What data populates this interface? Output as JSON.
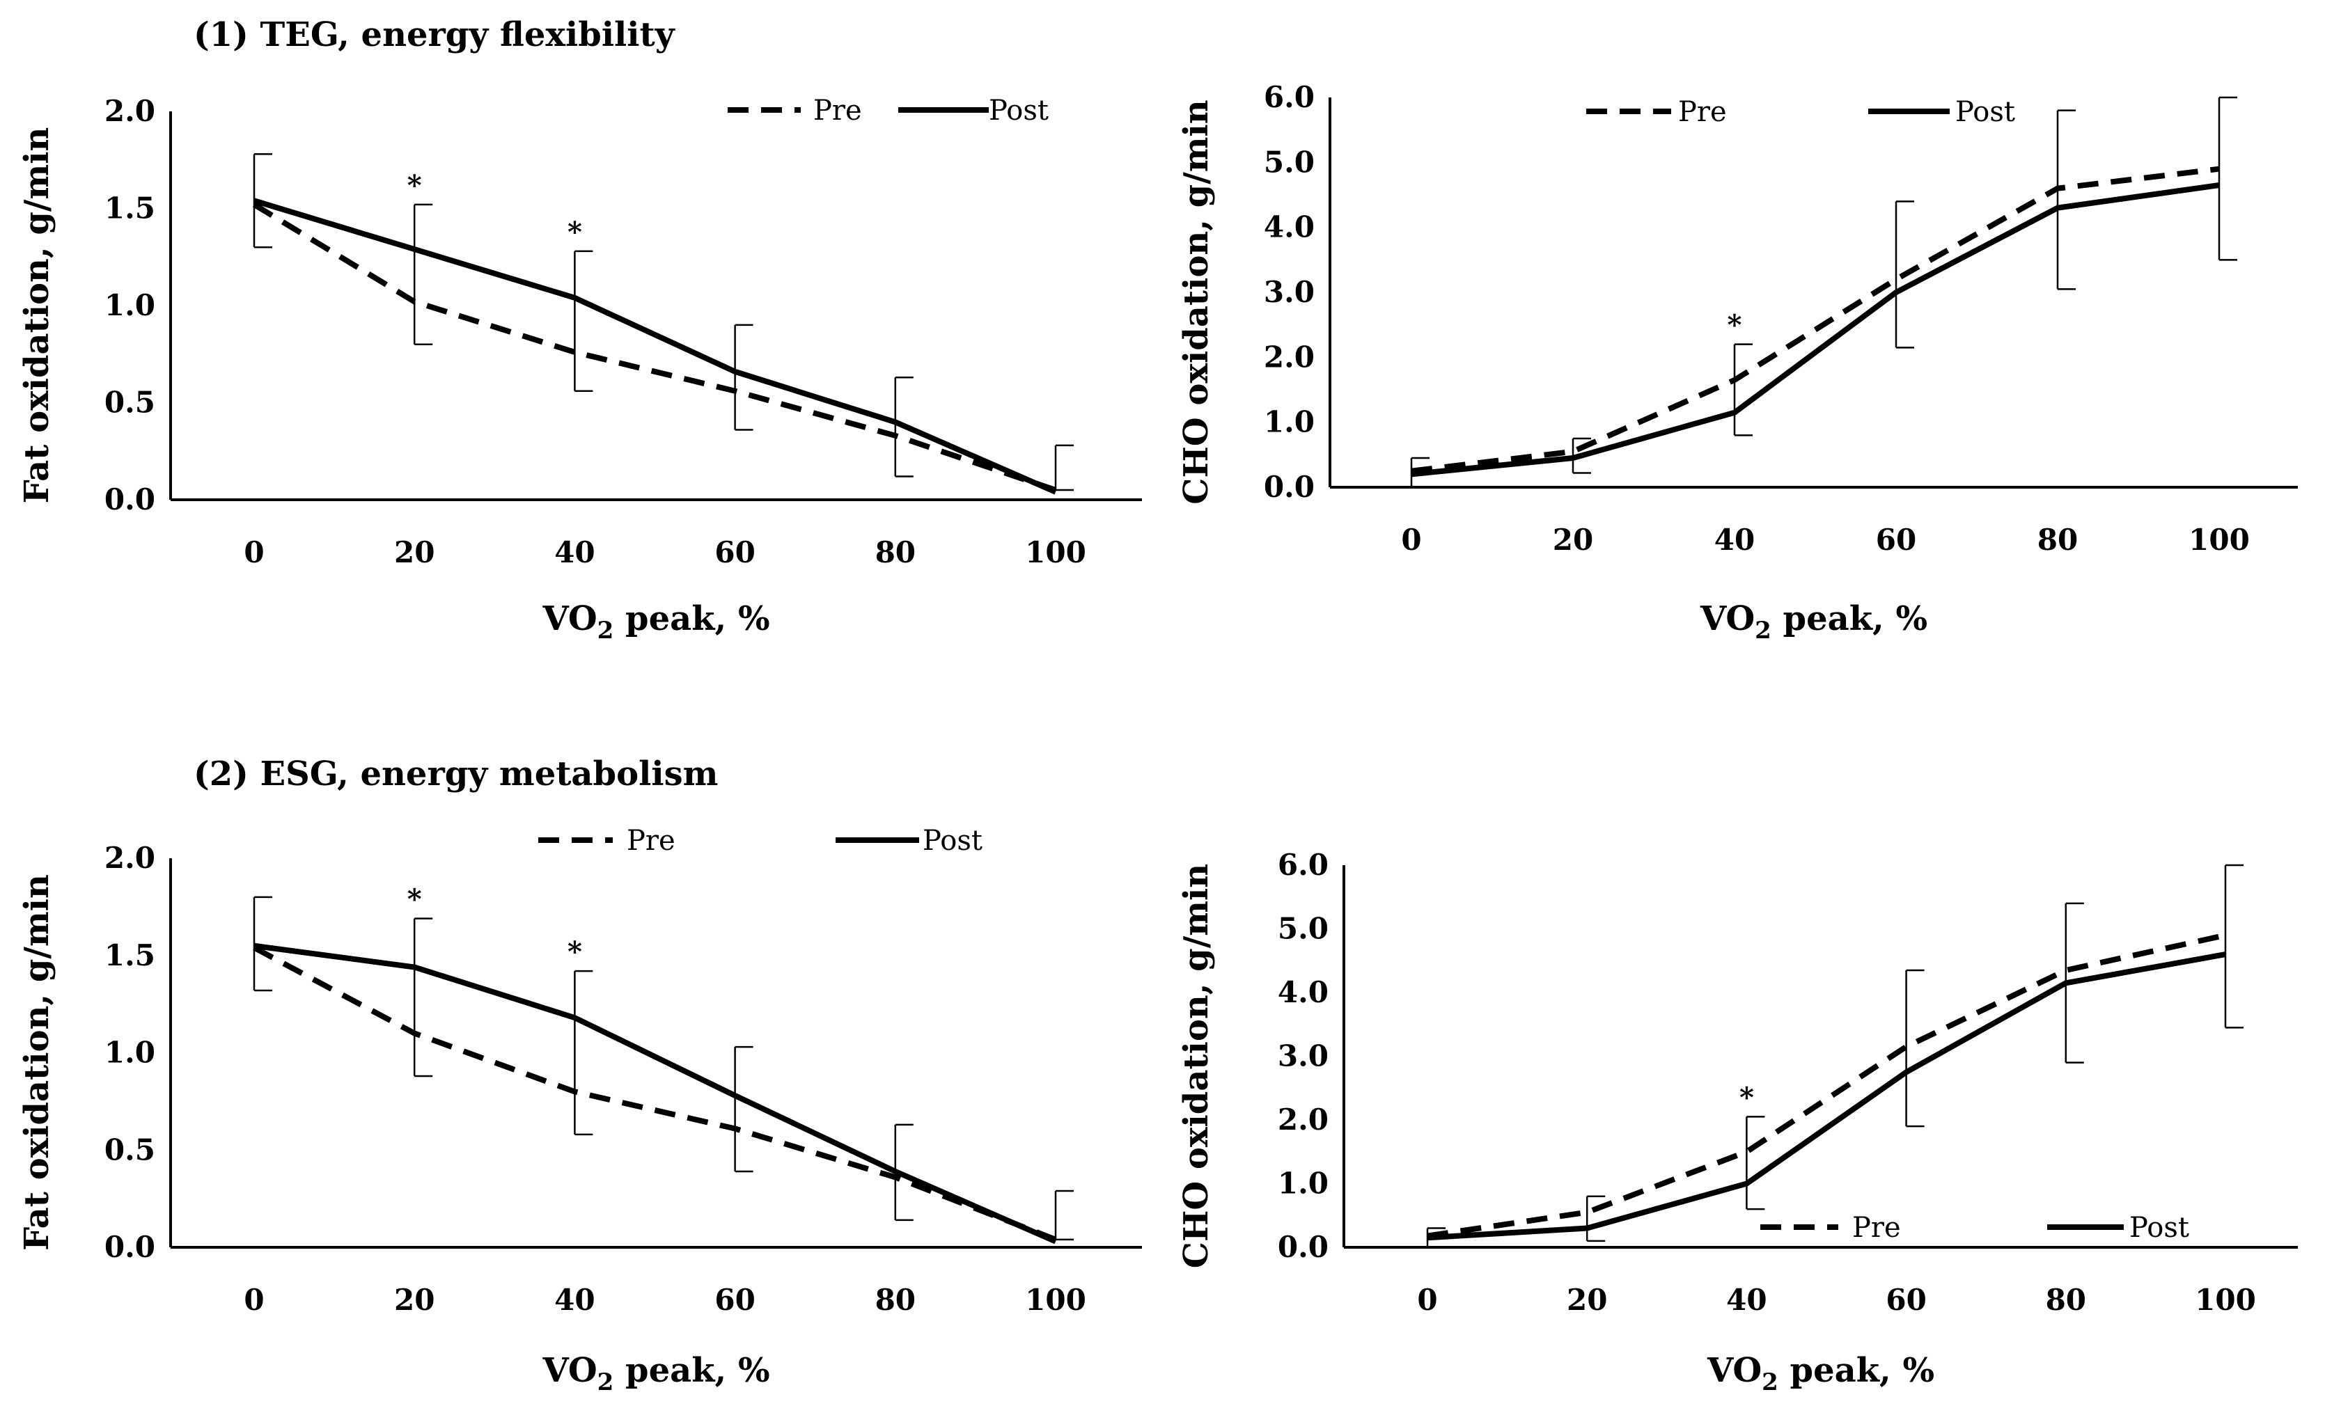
{
  "figure_titles": {
    "top": "(1) TEG, energy flexibility",
    "bottom": "(2) ESG, energy metabolism"
  },
  "chart_data": [
    {
      "id": "teg-fat",
      "type": "line",
      "title": "",
      "xlabel_main": "VO",
      "xlabel_sub": "2",
      "xlabel_rest": " peak, %",
      "ylabel": "Fat oxidation, g/min",
      "x": [
        0,
        20,
        40,
        60,
        80,
        100
      ],
      "xticks": [
        "0",
        "20",
        "40",
        "60",
        "80",
        "100"
      ],
      "ylim": [
        0,
        2.0
      ],
      "yticks": [
        "0.0",
        "0.5",
        "1.0",
        "1.5",
        "2.0"
      ],
      "legend": [
        {
          "name": "Pre",
          "style": "dashed"
        },
        {
          "name": "Post",
          "style": "solid"
        }
      ],
      "series": [
        {
          "name": "Pre",
          "style": "dashed",
          "values": [
            1.52,
            1.02,
            0.76,
            0.56,
            0.33,
            0.05
          ]
        },
        {
          "name": "Post",
          "style": "solid",
          "values": [
            1.54,
            1.29,
            1.04,
            0.66,
            0.4,
            0.04
          ]
        }
      ],
      "error_bars": [
        {
          "x": 0,
          "y": 1.54,
          "low": 1.3,
          "high": 1.78
        },
        {
          "x": 20,
          "y": 1.02,
          "low": 0.8,
          "high": 1.52
        },
        {
          "x": 40,
          "y": 0.76,
          "low": 0.56,
          "high": 1.28
        },
        {
          "x": 60,
          "y": 0.56,
          "low": 0.36,
          "high": 0.9
        },
        {
          "x": 80,
          "y": 0.33,
          "low": 0.12,
          "high": 0.63
        },
        {
          "x": 100,
          "y": 0.05,
          "low": 0.05,
          "high": 0.28
        }
      ],
      "significance": [
        {
          "x": 20,
          "label": "*"
        },
        {
          "x": 40,
          "label": "*"
        }
      ]
    },
    {
      "id": "teg-cho",
      "type": "line",
      "title": "",
      "xlabel_main": "VO",
      "xlabel_sub": "2",
      "xlabel_rest": " peak, %",
      "ylabel": "CHO oxidation, g/min",
      "x": [
        0,
        20,
        40,
        60,
        80,
        100
      ],
      "xticks": [
        "0",
        "20",
        "40",
        "60",
        "80",
        "100"
      ],
      "ylim": [
        0,
        6.0
      ],
      "yticks": [
        "0.0",
        "1.0",
        "2.0",
        "3.0",
        "4.0",
        "5.0",
        "6.0"
      ],
      "legend": [
        {
          "name": "Pre",
          "style": "dashed"
        },
        {
          "name": "Post",
          "style": "solid"
        }
      ],
      "series": [
        {
          "name": "Pre",
          "style": "dashed",
          "values": [
            0.25,
            0.55,
            1.65,
            3.2,
            4.6,
            4.9
          ]
        },
        {
          "name": "Post",
          "style": "solid",
          "values": [
            0.2,
            0.45,
            1.15,
            3.0,
            4.3,
            4.65
          ]
        }
      ],
      "error_bars": [
        {
          "x": 0,
          "y": 0.22,
          "low": 0.0,
          "high": 0.45
        },
        {
          "x": 20,
          "y": 0.5,
          "low": 0.22,
          "high": 0.75
        },
        {
          "x": 40,
          "y": 1.15,
          "low": 0.8,
          "high": 2.2
        },
        {
          "x": 60,
          "y": 3.0,
          "low": 2.15,
          "high": 4.4
        },
        {
          "x": 80,
          "y": 4.45,
          "low": 3.05,
          "high": 5.8
        },
        {
          "x": 100,
          "y": 4.65,
          "low": 3.5,
          "high": 6.0
        }
      ],
      "significance": [
        {
          "x": 40,
          "label": "*"
        }
      ]
    },
    {
      "id": "esg-fat",
      "type": "line",
      "title": "",
      "xlabel_main": "VO",
      "xlabel_sub": "2",
      "xlabel_rest": " peak, %",
      "ylabel": "Fat oxidation, g/min",
      "x": [
        0,
        20,
        40,
        60,
        80,
        100
      ],
      "xticks": [
        "0",
        "20",
        "40",
        "60",
        "80",
        "100"
      ],
      "ylim": [
        0,
        2.0
      ],
      "yticks": [
        "0.0",
        "0.5",
        "1.0",
        "1.5",
        "2.0"
      ],
      "legend": [
        {
          "name": "Pre",
          "style": "dashed"
        },
        {
          "name": "Post",
          "style": "solid"
        }
      ],
      "series": [
        {
          "name": "Pre",
          "style": "dashed",
          "values": [
            1.54,
            1.1,
            0.8,
            0.61,
            0.36,
            0.04
          ]
        },
        {
          "name": "Post",
          "style": "solid",
          "values": [
            1.55,
            1.44,
            1.18,
            0.78,
            0.39,
            0.03
          ]
        }
      ],
      "error_bars": [
        {
          "x": 0,
          "y": 1.55,
          "low": 1.32,
          "high": 1.8
        },
        {
          "x": 20,
          "y": 1.1,
          "low": 0.88,
          "high": 1.69
        },
        {
          "x": 40,
          "y": 0.8,
          "low": 0.58,
          "high": 1.42
        },
        {
          "x": 60,
          "y": 0.61,
          "low": 0.39,
          "high": 1.03
        },
        {
          "x": 80,
          "y": 0.36,
          "low": 0.14,
          "high": 0.63
        },
        {
          "x": 100,
          "y": 0.04,
          "low": 0.04,
          "high": 0.29
        }
      ],
      "significance": [
        {
          "x": 20,
          "label": "*"
        },
        {
          "x": 40,
          "label": "*"
        }
      ]
    },
    {
      "id": "esg-cho",
      "type": "line",
      "title": "",
      "xlabel_main": "VO",
      "xlabel_sub": "2",
      "xlabel_rest": " peak, %",
      "ylabel": "CHO oxidation, g/min",
      "x": [
        0,
        20,
        40,
        60,
        80,
        100
      ],
      "xticks": [
        "0",
        "20",
        "40",
        "60",
        "80",
        "100"
      ],
      "ylim": [
        0,
        6.0
      ],
      "yticks": [
        "0.0",
        "1.0",
        "2.0",
        "3.0",
        "4.0",
        "5.0",
        "6.0"
      ],
      "legend": [
        {
          "name": "Pre",
          "style": "dashed"
        },
        {
          "name": "Post",
          "style": "solid"
        }
      ],
      "series": [
        {
          "name": "Pre",
          "style": "dashed",
          "values": [
            0.18,
            0.55,
            1.5,
            3.15,
            4.35,
            4.9
          ]
        },
        {
          "name": "Post",
          "style": "solid",
          "values": [
            0.15,
            0.3,
            1.0,
            2.75,
            4.15,
            4.6
          ]
        }
      ],
      "error_bars": [
        {
          "x": 0,
          "y": 0.15,
          "low": 0.0,
          "high": 0.3
        },
        {
          "x": 20,
          "y": 0.4,
          "low": 0.1,
          "high": 0.8
        },
        {
          "x": 40,
          "y": 1.0,
          "low": 0.6,
          "high": 2.05
        },
        {
          "x": 60,
          "y": 2.75,
          "low": 1.9,
          "high": 4.35
        },
        {
          "x": 80,
          "y": 4.15,
          "low": 2.9,
          "high": 5.4
        },
        {
          "x": 100,
          "y": 4.6,
          "low": 3.45,
          "high": 6.0
        }
      ],
      "significance": [
        {
          "x": 40,
          "label": "*"
        }
      ]
    }
  ]
}
